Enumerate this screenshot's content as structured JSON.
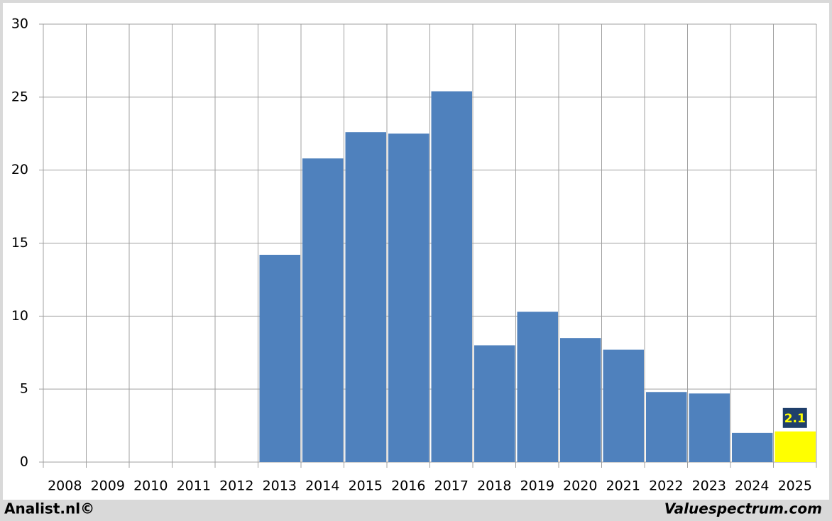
{
  "chart_data": {
    "type": "bar",
    "categories": [
      "2008",
      "2009",
      "2010",
      "2011",
      "2012",
      "2013",
      "2014",
      "2015",
      "2016",
      "2017",
      "2018",
      "2019",
      "2020",
      "2021",
      "2022",
      "2023",
      "2024",
      "2025"
    ],
    "values": [
      null,
      null,
      null,
      null,
      null,
      14.2,
      20.8,
      22.6,
      22.5,
      25.4,
      8.0,
      10.3,
      8.5,
      7.7,
      4.8,
      4.7,
      2.0,
      2.1
    ],
    "colors": [
      "#4f81bd",
      "#4f81bd",
      "#4f81bd",
      "#4f81bd",
      "#4f81bd",
      "#4f81bd",
      "#4f81bd",
      "#4f81bd",
      "#4f81bd",
      "#4f81bd",
      "#4f81bd",
      "#4f81bd",
      "#4f81bd",
      "#4f81bd",
      "#4f81bd",
      "#4f81bd",
      "#4f81bd",
      "#ffff00"
    ],
    "labeled_index": 17,
    "ylim": [
      0,
      30
    ],
    "yticks": [
      0,
      5,
      10,
      15,
      20,
      25,
      30
    ],
    "grid": true,
    "credits": [
      "Analist.nl©",
      "Valuespectrum.com"
    ]
  }
}
